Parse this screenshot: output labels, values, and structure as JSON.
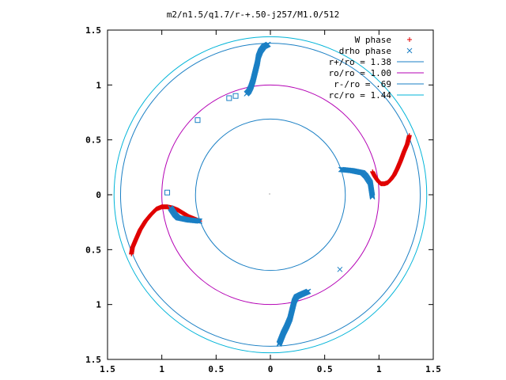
{
  "chart_data": {
    "type": "scatter",
    "title": "m2/n1.5/q1.7/r-+.50-j257/M1.0/512",
    "xlim": [
      -1.5,
      1.5
    ],
    "ylim": [
      -1.5,
      1.5
    ],
    "x_ticks": [
      {
        "value": -1.5,
        "label": "1.5"
      },
      {
        "value": -1.0,
        "label": "1"
      },
      {
        "value": -0.5,
        "label": "0.5"
      },
      {
        "value": 0.0,
        "label": "0"
      },
      {
        "value": 0.5,
        "label": "0.5"
      },
      {
        "value": 1.0,
        "label": "1"
      },
      {
        "value": 1.5,
        "label": "1.5"
      }
    ],
    "y_ticks": [
      {
        "value": 1.5,
        "label": "1.5"
      },
      {
        "value": 1.0,
        "label": "1"
      },
      {
        "value": 0.5,
        "label": "0.5"
      },
      {
        "value": 0.0,
        "label": "0"
      },
      {
        "value": -0.5,
        "label": "0.5"
      },
      {
        "value": -1.0,
        "label": "1"
      },
      {
        "value": -1.5,
        "label": "1.5"
      }
    ],
    "grid": false,
    "legend_position": "top-right",
    "circles": [
      {
        "name": "r+/ro = 1.38",
        "radius": 1.38,
        "color": "#1a7fc4"
      },
      {
        "name": "ro/ro = 1.00",
        "radius": 1.0,
        "color": "#b400b4"
      },
      {
        "name": "r-/ro = .69",
        "radius": 0.69,
        "color": "#1a7fc4"
      },
      {
        "name": "rc/ro = 1.44",
        "radius": 1.44,
        "color": "#00b4d8"
      }
    ],
    "series": [
      {
        "name": "W phase",
        "marker": "plus",
        "color": "#e00000",
        "arms": [
          {
            "points": [
              [
                0.94,
                0.21
              ],
              [
                0.96,
                0.17
              ],
              [
                0.98,
                0.14
              ],
              [
                1.0,
                0.115
              ],
              [
                1.02,
                0.1
              ],
              [
                1.05,
                0.1
              ],
              [
                1.08,
                0.11
              ],
              [
                1.11,
                0.14
              ],
              [
                1.14,
                0.18
              ],
              [
                1.17,
                0.24
              ],
              [
                1.2,
                0.31
              ],
              [
                1.23,
                0.39
              ],
              [
                1.26,
                0.46
              ],
              [
                1.27,
                0.5
              ],
              [
                1.28,
                0.54
              ]
            ]
          },
          {
            "points": [
              [
                -0.65,
                -0.24
              ],
              [
                -0.7,
                -0.22
              ],
              [
                -0.75,
                -0.2
              ],
              [
                -0.8,
                -0.17
              ],
              [
                -0.85,
                -0.14
              ],
              [
                -0.9,
                -0.12
              ],
              [
                -0.95,
                -0.11
              ],
              [
                -1.0,
                -0.11
              ],
              [
                -1.05,
                -0.13
              ],
              [
                -1.1,
                -0.18
              ],
              [
                -1.15,
                -0.24
              ],
              [
                -1.2,
                -0.32
              ],
              [
                -1.24,
                -0.41
              ],
              [
                -1.27,
                -0.48
              ],
              [
                -1.28,
                -0.54
              ]
            ]
          }
        ]
      },
      {
        "name": "drho phase",
        "marker": "cross",
        "color": "#1a7fc4",
        "arms": [
          {
            "points": [
              [
                0.65,
                0.23
              ],
              [
                0.7,
                0.225
              ],
              [
                0.75,
                0.22
              ],
              [
                0.8,
                0.21
              ],
              [
                0.85,
                0.2
              ],
              [
                0.88,
                0.17
              ],
              [
                0.9,
                0.14
              ],
              [
                0.92,
                0.11
              ],
              [
                0.94,
                -0.02
              ],
              [
                0.64,
                -0.68
              ],
              [
                0.35,
                -0.88
              ],
              [
                0.28,
                -0.91
              ],
              [
                0.24,
                -0.93
              ],
              [
                0.22,
                -0.97
              ],
              [
                0.2,
                -1.05
              ],
              [
                0.18,
                -1.13
              ],
              [
                0.15,
                -1.2
              ],
              [
                0.12,
                -1.26
              ],
              [
                0.1,
                -1.31
              ],
              [
                0.08,
                -1.36
              ]
            ]
          },
          {
            "points": [
              [
                -0.22,
                0.92
              ],
              [
                -0.2,
                0.94
              ],
              [
                -0.18,
                0.98
              ],
              [
                -0.16,
                1.04
              ],
              [
                -0.14,
                1.12
              ],
              [
                -0.12,
                1.2
              ],
              [
                -0.11,
                1.26
              ],
              [
                -0.09,
                1.31
              ],
              [
                -0.06,
                1.35
              ],
              [
                -0.02,
                1.37
              ]
            ]
          },
          {
            "points": [
              [
                -0.65,
                -0.24
              ],
              [
                -0.7,
                -0.235
              ],
              [
                -0.75,
                -0.23
              ],
              [
                -0.8,
                -0.22
              ],
              [
                -0.85,
                -0.21
              ],
              [
                -0.88,
                -0.18
              ],
              [
                -0.9,
                -0.15
              ],
              [
                -0.92,
                -0.12
              ]
            ]
          }
        ]
      }
    ],
    "squares": [
      [
        -0.95,
        0.02
      ],
      [
        -0.67,
        0.68
      ],
      [
        -0.38,
        0.88
      ],
      [
        -0.32,
        0.9
      ]
    ]
  }
}
